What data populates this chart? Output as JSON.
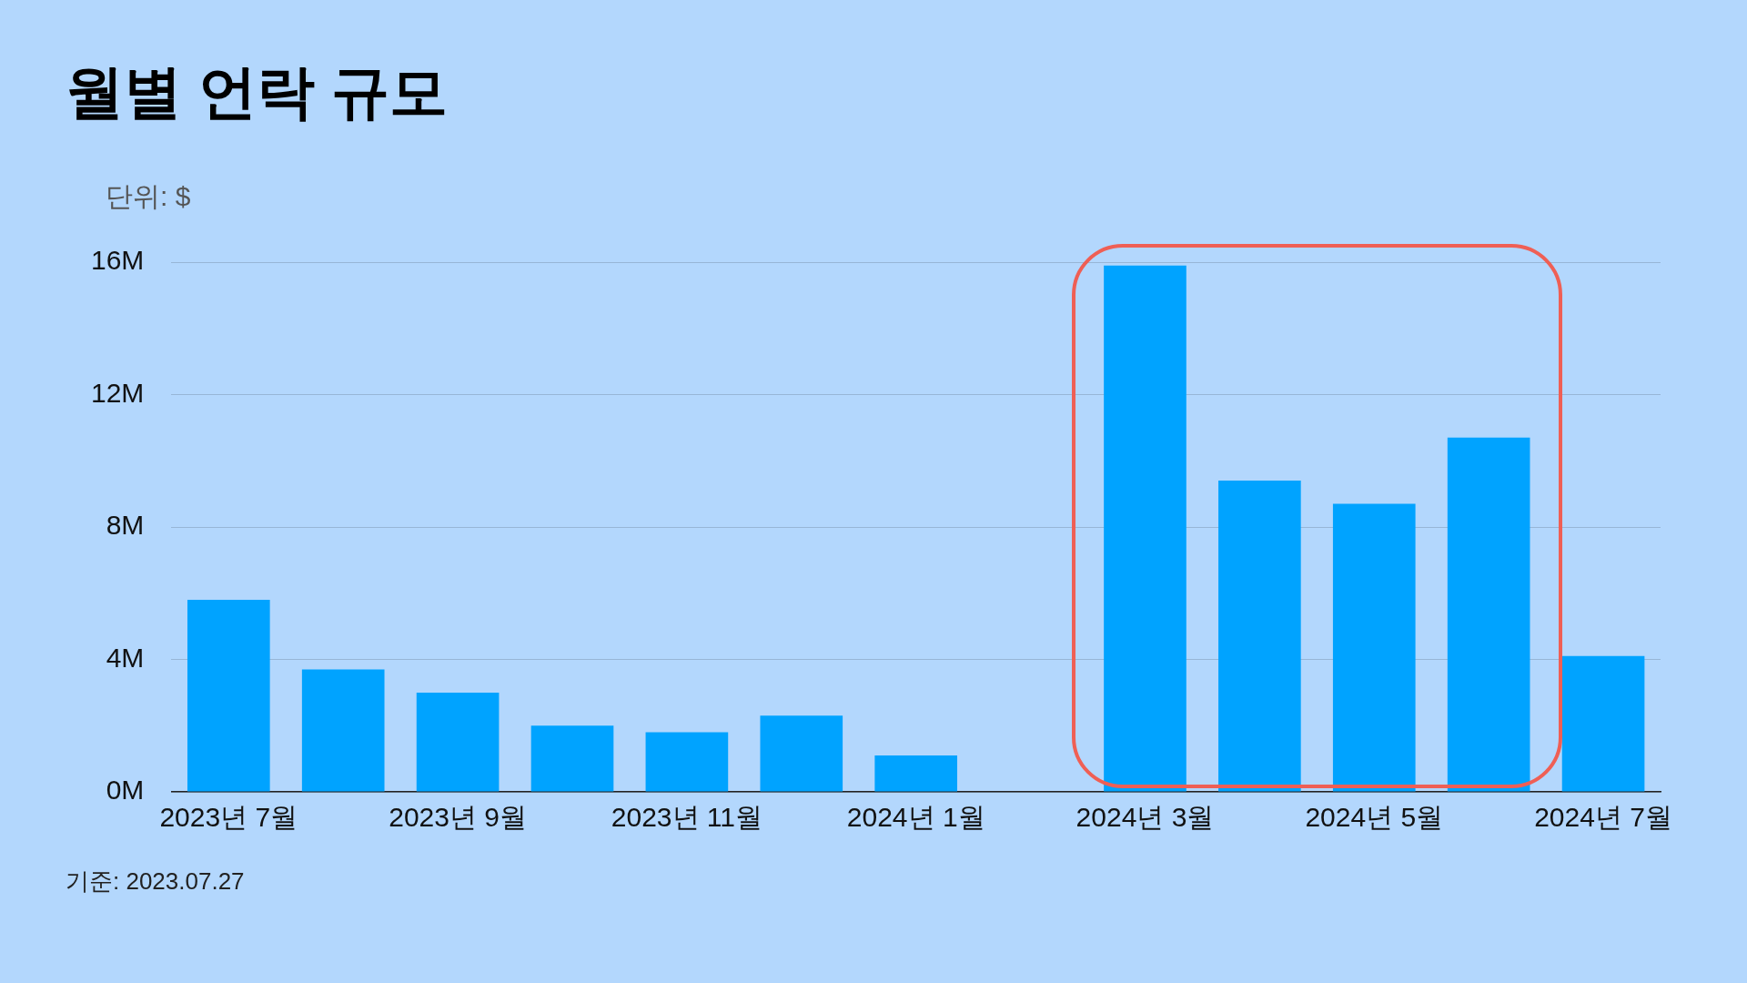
{
  "chart_data": {
    "type": "bar",
    "title": "월별 언락 규모",
    "ylabel": "단위: $",
    "categories": [
      "2023년 7월",
      null,
      "2023년 9월",
      null,
      "2023년 11월",
      null,
      "2024년 1월",
      null,
      "2024년 3월",
      null,
      "2024년 5월",
      null,
      "2024년 7월"
    ],
    "values": [
      5.8,
      3.7,
      3.0,
      2.0,
      1.8,
      2.3,
      1.1,
      null,
      15.9,
      9.4,
      8.7,
      10.7,
      4.1
    ],
    "color": "#00a3ff",
    "ylim": [
      0,
      16
    ],
    "yticks": [
      {
        "value": 0,
        "label": "0M"
      },
      {
        "value": 4,
        "label": "4M"
      },
      {
        "value": 8,
        "label": "8M"
      },
      {
        "value": 12,
        "label": "12M"
      },
      {
        "value": 16,
        "label": "16M"
      }
    ],
    "grid": "y",
    "annotations": [
      "기준: 2023.07.27"
    ]
  }
}
